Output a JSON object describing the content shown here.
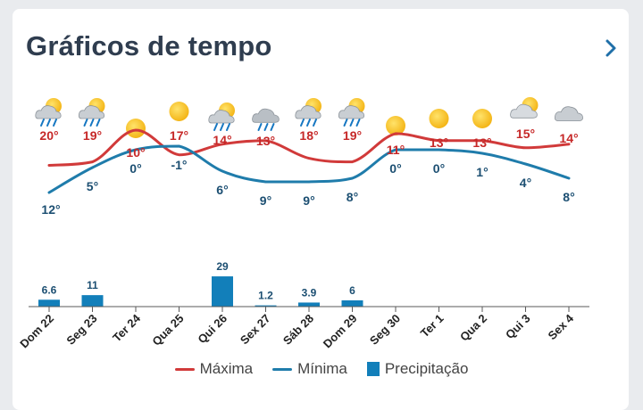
{
  "header": {
    "title": "Gráficos de tempo"
  },
  "colors": {
    "max": "#d13a3a",
    "min": "#1f7cab",
    "precip": "#127fba",
    "maxLabel": "#c62828",
    "minLabel": "#1c4f72",
    "axis": "#222222"
  },
  "legend": {
    "max_label": "Máxima",
    "min_label": "Mínima",
    "precip_label": "Precipitação"
  },
  "chart_data": {
    "type": "line",
    "categories": [
      "Dom 22",
      "Seg 23",
      "Ter 24",
      "Qua 25",
      "Qui 26",
      "Sex 27",
      "Sáb 28",
      "Dom 29",
      "Seg 30",
      "Ter 1",
      "Qua 2",
      "Qui 3",
      "Sex 4"
    ],
    "icons": [
      "sun-cloud-rain",
      "sun-cloud-rain",
      "sun",
      "sun",
      "sun-cloud-rain",
      "cloud-rain",
      "sun-cloud-rain",
      "sun-cloud-rain",
      "sun",
      "sun",
      "sun",
      "sun-cloud",
      "cloud"
    ],
    "series": [
      {
        "name": "Máxima",
        "values": [
          20,
          19,
          10,
          17,
          14,
          13,
          18,
          19,
          11,
          13,
          13,
          15,
          14
        ]
      },
      {
        "name": "Mínima",
        "values": [
          12,
          5,
          0,
          -1,
          6,
          9,
          9,
          8,
          0,
          0,
          1,
          4,
          8
        ]
      }
    ],
    "precipitation": {
      "name": "Precipitação",
      "values": [
        6.6,
        11,
        null,
        null,
        29,
        1.2,
        3.9,
        6,
        null,
        null,
        null,
        null,
        null
      ]
    },
    "max_labels": [
      "20°",
      "19°",
      "10°",
      "17°",
      "14°",
      "13°",
      "18°",
      "19°",
      "11°",
      "13°",
      "13°",
      "15°",
      "14°"
    ],
    "min_labels": [
      "12°",
      "5°",
      "0°",
      "-1°",
      "6°",
      "9°",
      "9°",
      "8°",
      "0°",
      "0°",
      "1°",
      "4°",
      "8°"
    ],
    "precip_labels": [
      "6.6",
      "11",
      "",
      "",
      "29",
      "1.2",
      "3.9",
      "6",
      "",
      "",
      "",
      "",
      ""
    ]
  }
}
